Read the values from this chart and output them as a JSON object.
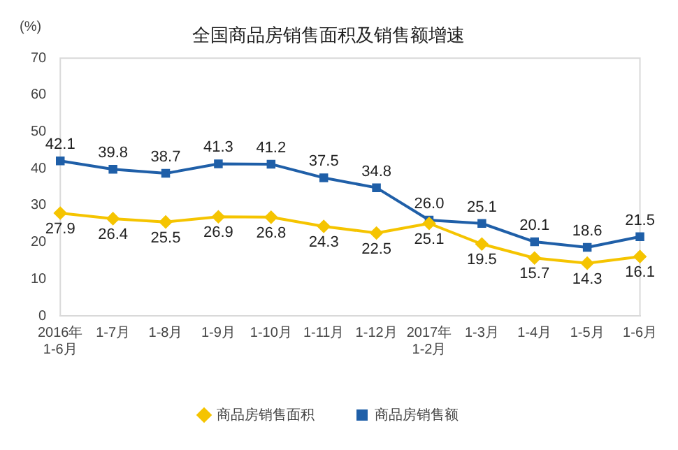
{
  "chart_data": {
    "type": "line",
    "title": "全国商品房销售面积及销售额增速",
    "ylabel": "(%)",
    "categories": [
      "2016年\n1-6月",
      "1-7月",
      "1-8月",
      "1-9月",
      "1-10月",
      "1-11月",
      "1-12月",
      "2017年\n1-2月",
      "1-3月",
      "1-4月",
      "1-5月",
      "1-6月"
    ],
    "series": [
      {
        "name": "商品房销售面积",
        "color": "#f5c400",
        "marker": "diamond",
        "values": [
          27.9,
          26.4,
          25.5,
          26.9,
          26.8,
          24.3,
          22.5,
          25.1,
          19.5,
          15.7,
          14.3,
          16.1
        ],
        "value_labels": [
          "27.9",
          "26.4",
          "25.5",
          "26.9",
          "26.8",
          "24.3",
          "22.5",
          "25.1",
          "19.5",
          "15.7",
          "14.3",
          "16.1"
        ]
      },
      {
        "name": "商品房销售额",
        "color": "#1f5fa8",
        "marker": "square",
        "values": [
          42.1,
          39.8,
          38.7,
          41.3,
          41.2,
          37.5,
          34.8,
          26.0,
          25.1,
          20.1,
          18.6,
          21.5
        ],
        "value_labels": [
          "42.1",
          "39.8",
          "38.7",
          "41.3",
          "41.2",
          "37.5",
          "34.8",
          "26.0",
          "25.1",
          "20.1",
          "18.6",
          "21.5"
        ]
      }
    ],
    "ylim": [
      0,
      70
    ],
    "yticks": [
      0,
      10,
      20,
      30,
      40,
      50,
      60,
      70
    ],
    "grid": false,
    "legend": "bottom"
  }
}
